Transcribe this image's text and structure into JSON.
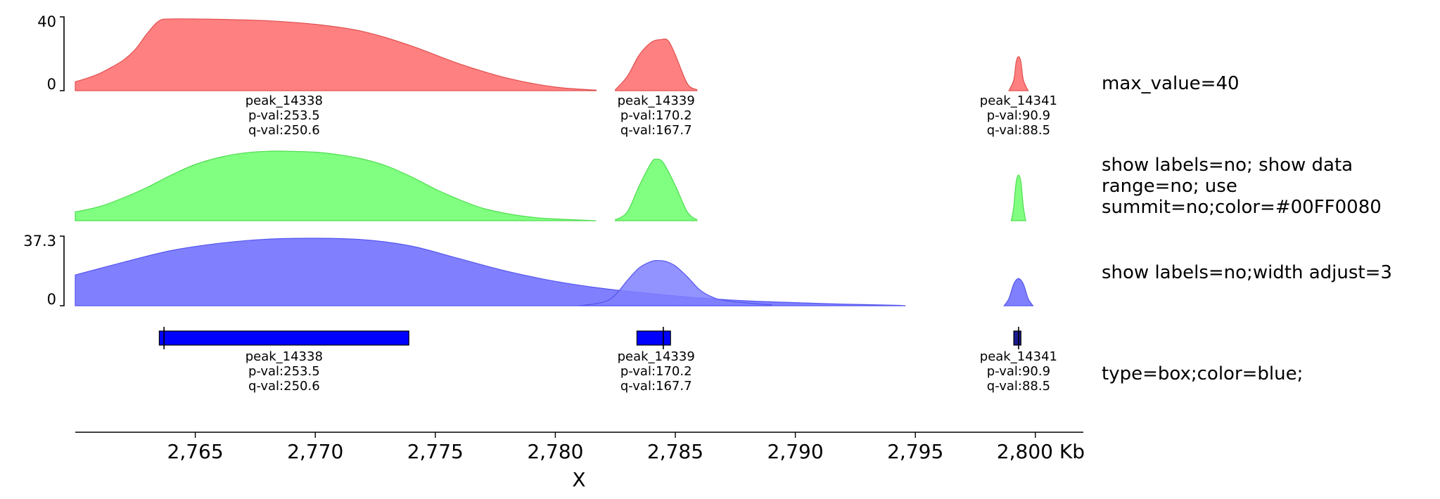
{
  "chart_data": {
    "type": "area",
    "xlabel": "X",
    "x_unit": "Kb",
    "xlim": [
      2760.0,
      2802.0
    ],
    "x_ticks": [
      2765,
      2770,
      2775,
      2780,
      2785,
      2790,
      2795,
      2800
    ],
    "x_tick_labels": [
      "2,765",
      "2,770",
      "2,775",
      "2,780",
      "2,785",
      "2,790",
      "2,795",
      "2,800 Kb"
    ],
    "colors": {
      "red": "#ff8080",
      "red_edge": "#e05050",
      "green": "#80ff80",
      "green_edge": "#50dd50",
      "blue": "#8080ff",
      "blue_edge": "#5555ee",
      "box": "#0000ff",
      "box_dark": "#1a1a90"
    },
    "peaks": [
      {
        "name": "peak_14338",
        "pval": "p-val:253.5",
        "qval": "q-val:250.6",
        "start": 2763.5,
        "end": 2773.9,
        "summit": 2763.7,
        "height": 40.0
      },
      {
        "name": "peak_14339",
        "pval": "p-val:170.2",
        "qval": "q-val:167.7",
        "start": 2783.4,
        "end": 2784.8,
        "summit": 2784.5,
        "height": 29.0
      },
      {
        "name": "peak_14341",
        "pval": "p-val:90.9",
        "qval": "q-val:88.5",
        "start": 2799.1,
        "end": 2799.4,
        "summit": 2799.3,
        "height": 19.0
      }
    ],
    "tracks": [
      {
        "key": "red",
        "label_lines": [
          "max_value=40"
        ],
        "range": {
          "min": "0",
          "max": "40"
        },
        "ylim": [
          0,
          40
        ],
        "series": [
          {
            "x": [
              2760.0,
              2760.5,
              2761.0,
              2761.5,
              2762.0,
              2762.5,
              2763.0,
              2763.5,
              2764.0,
              2765.0,
              2766.0,
              2768.0,
              2770.0,
              2772.0,
              2774.0,
              2776.0,
              2778.0,
              2780.0,
              2781.7
            ],
            "y": [
              5,
              7,
              9.5,
              13,
              17,
              23,
              32,
              39,
              40,
              40,
              39.8,
              39,
              37,
              33,
              25,
              15,
              7,
              2,
              0.3
            ]
          },
          {
            "x": [
              2782.5,
              2783.0,
              2783.5,
              2784.0,
              2784.4,
              2784.7,
              2785.0,
              2785.5,
              2785.9
            ],
            "y": [
              0.5,
              8,
              20,
              27,
              28.5,
              28,
              20,
              4,
              0.5
            ]
          },
          {
            "x": [
              2798.9,
              2799.1,
              2799.2,
              2799.3,
              2799.4,
              2799.5,
              2799.7
            ],
            "y": [
              0,
              6,
              16,
              19,
              16,
              6,
              0
            ]
          }
        ]
      },
      {
        "key": "green",
        "label_lines": [
          "show labels=no; show data",
          "range=no; use",
          "summit=no;color=#00FF0080"
        ],
        "ylim": [
          0,
          40
        ],
        "series": [
          {
            "x": [
              2760.0,
              2761.0,
              2762.0,
              2763.0,
              2764.0,
              2765.0,
              2766.0,
              2767.0,
              2768.0,
              2769.0,
              2770.0,
              2771.0,
              2772.0,
              2773.0,
              2774.0,
              2775.0,
              2776.0,
              2777.0,
              2778.0,
              2779.0,
              2780.0,
              2781.0,
              2781.7
            ],
            "y": [
              5,
              8,
              13,
              19,
              26,
              32,
              36,
              38.5,
              39.5,
              39.5,
              39,
              37.5,
              35,
              31,
              25,
              18,
              12,
              7,
              4,
              2,
              1,
              0.4,
              0
            ]
          },
          {
            "x": [
              2782.5,
              2783.0,
              2783.5,
              2784.0,
              2784.2,
              2784.5,
              2785.0,
              2785.5,
              2785.9
            ],
            "y": [
              0.5,
              5,
              20,
              33,
              35,
              33,
              20,
              5,
              0.5
            ]
          },
          {
            "x": [
              2799.0,
              2799.1,
              2799.2,
              2799.3,
              2799.4,
              2799.5,
              2799.6
            ],
            "y": [
              0,
              8,
              22,
              26,
              22,
              8,
              0
            ]
          }
        ]
      },
      {
        "key": "blue",
        "label_lines": [
          "show labels=no;width adjust=3"
        ],
        "range": {
          "min": "0",
          "max": "37.3"
        },
        "ylim": [
          0,
          37.3
        ],
        "series": [
          {
            "x": [
              2760.0,
              2762.0,
              2764.0,
              2766.0,
              2768.0,
              2770.0,
              2772.0,
              2774.0,
              2776.0,
              2778.0,
              2780.0,
              2782.0,
              2784.0,
              2786.0,
              2788.0,
              2790.0,
              2792.0,
              2794.0,
              2794.6
            ],
            "y": [
              17,
              24,
              30.5,
              34.5,
              36.8,
              37.3,
              36.5,
              33,
              26,
              19,
              13.5,
              9.5,
              6.7,
              4.3,
              2.7,
              1.7,
              0.9,
              0.3,
              0
            ]
          },
          {
            "x": [
              2781.0,
              2782.0,
              2782.5,
              2783.0,
              2783.5,
              2784.0,
              2784.3,
              2784.6,
              2785.0,
              2785.5,
              2786.0,
              2786.5,
              2787.0,
              2788.0,
              2789.0
            ],
            "y": [
              0,
              2,
              6,
              14,
              21,
              24.5,
              25,
              24.5,
              22,
              16,
              9,
              5,
              3,
              1.5,
              0.5
            ]
          },
          {
            "x": [
              2798.7,
              2798.9,
              2799.1,
              2799.3,
              2799.5,
              2799.7,
              2799.9
            ],
            "y": [
              0,
              4,
              12,
              15,
              12,
              4,
              0
            ]
          }
        ]
      },
      {
        "key": "box",
        "type": "box",
        "label_lines": [
          "type=box;color=blue;"
        ]
      }
    ]
  }
}
